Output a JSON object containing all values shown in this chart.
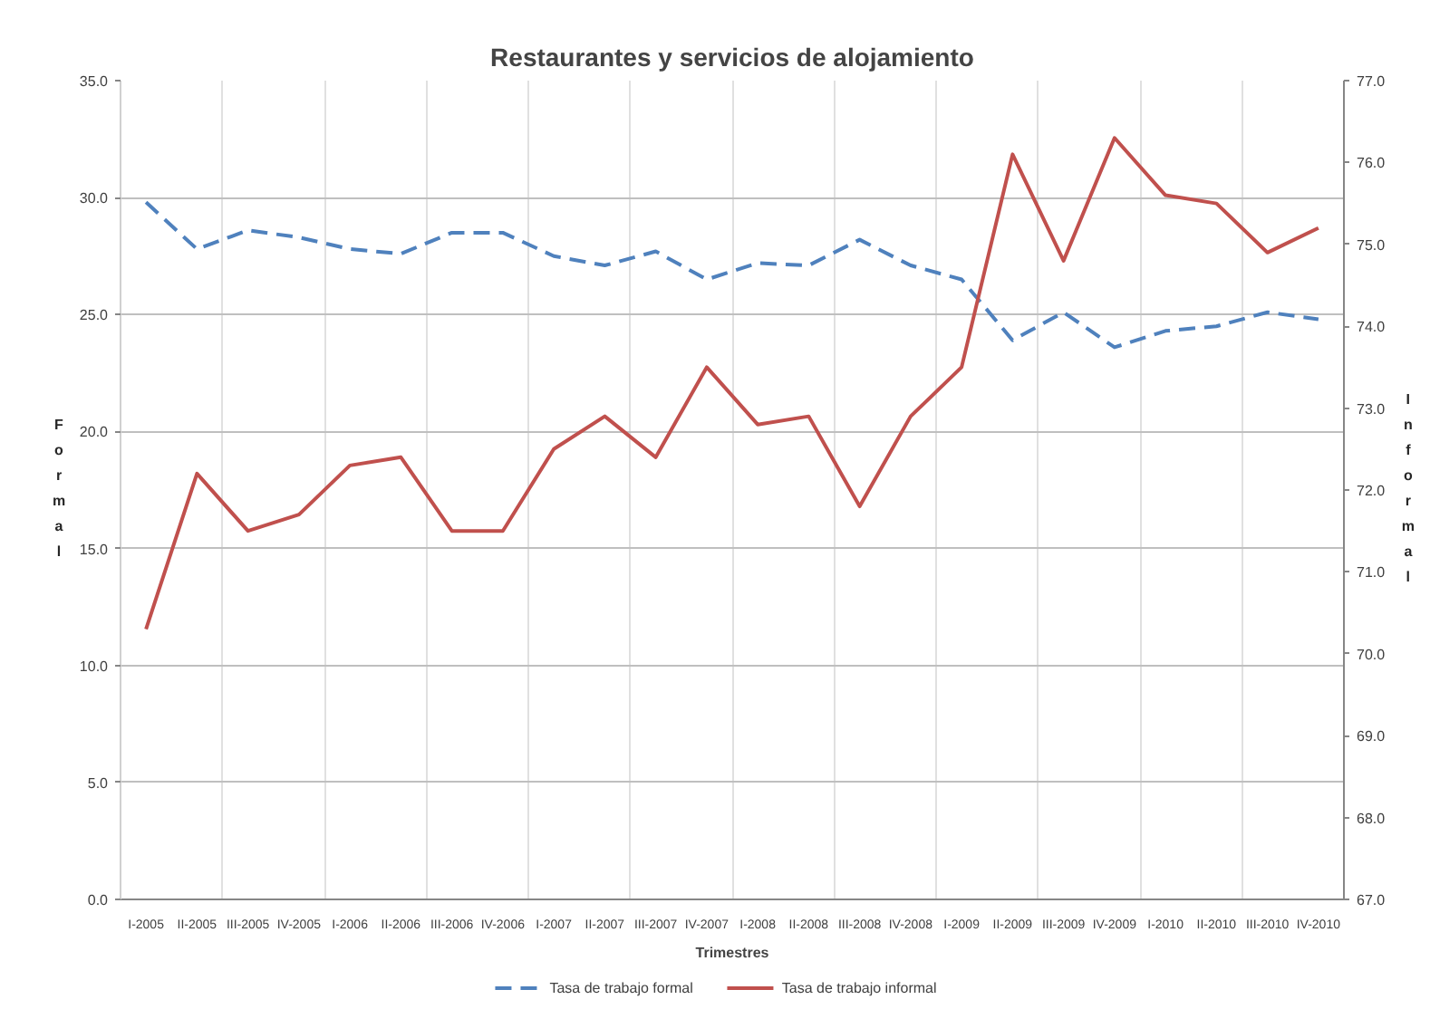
{
  "chart_data": {
    "type": "line",
    "title": "Restaurantes y servicios de alojamiento",
    "xlabel": "Trimestres",
    "ylabel": "Formal",
    "y2label": "Informal",
    "categories": [
      "I-2005",
      "II-2005",
      "III-2005",
      "IV-2005",
      "I-2006",
      "II-2006",
      "III-2006",
      "IV-2006",
      "I-2007",
      "II-2007",
      "III-2007",
      "IV-2007",
      "I-2008",
      "II-2008",
      "III-2008",
      "IV-2008",
      "I-2009",
      "II-2009",
      "III-2009",
      "IV-2009",
      "I-2010",
      "II-2010",
      "III-2010",
      "IV-2010"
    ],
    "series": [
      {
        "name": "Tasa de trabajo formal",
        "color": "#4f81bd",
        "line_style": "dashed",
        "values": [
          29.8,
          27.8,
          28.6,
          28.3,
          27.8,
          27.6,
          28.5,
          28.5,
          27.5,
          27.1,
          27.7,
          26.5,
          27.2,
          27.1,
          28.2,
          27.1,
          26.5,
          23.9,
          25.1,
          23.6,
          24.3,
          24.5,
          25.1,
          24.8
        ]
      },
      {
        "name": "Tasa de trabajo informal",
        "color": "#c0504d",
        "line_style": "solid",
        "axis": "y2",
        "values": [
          70.3,
          72.2,
          71.5,
          71.7,
          72.3,
          72.4,
          71.5,
          71.5,
          72.5,
          72.9,
          72.4,
          73.5,
          72.8,
          72.9,
          71.8,
          72.9,
          73.5,
          76.1,
          74.8,
          76.3,
          75.6,
          75.5,
          74.9,
          75.2
        ]
      }
    ],
    "ylim": [
      0,
      35
    ],
    "yticks": [
      {
        "value": 0,
        "label": "0.0"
      },
      {
        "value": 5,
        "label": "5.0"
      },
      {
        "value": 10,
        "label": "10.0"
      },
      {
        "value": 15,
        "label": "15.0"
      },
      {
        "value": 20,
        "label": "20.0"
      },
      {
        "value": 25,
        "label": "25.0"
      },
      {
        "value": 30,
        "label": "30.0"
      },
      {
        "value": 35,
        "label": "35.0"
      }
    ],
    "y2lim": [
      67,
      77
    ],
    "y2ticks": [
      {
        "value": 67,
        "label": "67.0"
      },
      {
        "value": 68,
        "label": "68.0"
      },
      {
        "value": 69,
        "label": "69.0"
      },
      {
        "value": 70,
        "label": "70.0"
      },
      {
        "value": 71,
        "label": "71.0"
      },
      {
        "value": 72,
        "label": "72.0"
      },
      {
        "value": 73,
        "label": "73.0"
      },
      {
        "value": 74,
        "label": "74.0"
      },
      {
        "value": 75,
        "label": "75.0"
      },
      {
        "value": 76,
        "label": "76.0"
      },
      {
        "value": 77,
        "label": "77.0"
      }
    ],
    "grid": true,
    "legend": "bottom"
  }
}
